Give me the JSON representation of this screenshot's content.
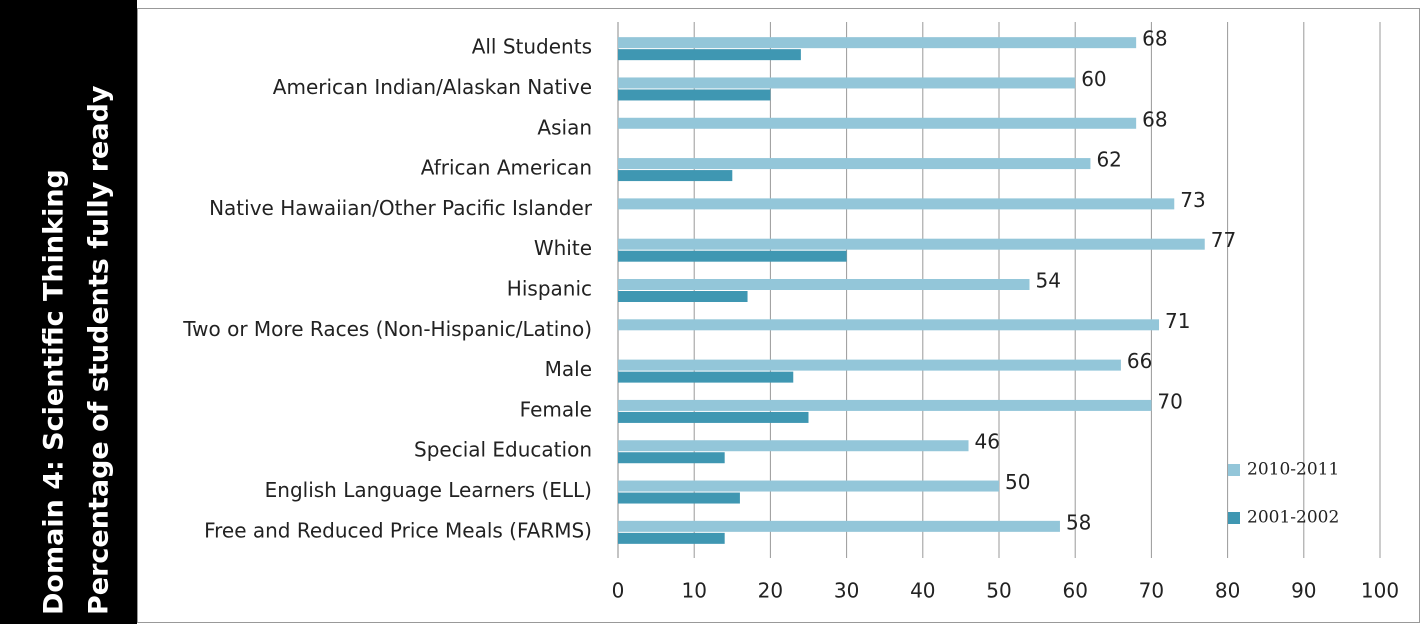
{
  "chart_data": {
    "type": "bar",
    "orientation": "horizontal",
    "title": "Domain 4: Scientific Thinking",
    "subtitle": "Percentage of students fully ready",
    "categories": [
      "All Students",
      "American Indian/Alaskan Native",
      "Asian",
      "African American",
      "Native Hawaiian/Other Pacific Islander",
      "White",
      "Hispanic",
      "Two or More Races (Non-Hispanic/Latino)",
      "Male",
      "Female",
      "Special Education",
      "English Language Learners (ELL)",
      "Free and Reduced Price Meals (FARMS)"
    ],
    "series": [
      {
        "name": "2010-2011",
        "color": "#93c6d9",
        "values": [
          68,
          60,
          68,
          62,
          73,
          77,
          54,
          71,
          66,
          70,
          46,
          50,
          58
        ],
        "show_labels": true
      },
      {
        "name": "2001-2002",
        "color": "#3f97b2",
        "values": [
          24,
          20,
          null,
          15,
          null,
          30,
          17,
          null,
          23,
          25,
          14,
          16,
          14
        ],
        "show_labels": false
      }
    ],
    "xlim": [
      0,
      100
    ],
    "xticks": [
      0,
      10,
      20,
      30,
      40,
      50,
      60,
      70,
      80,
      90,
      100
    ],
    "grid": true,
    "legend": "lower right"
  }
}
